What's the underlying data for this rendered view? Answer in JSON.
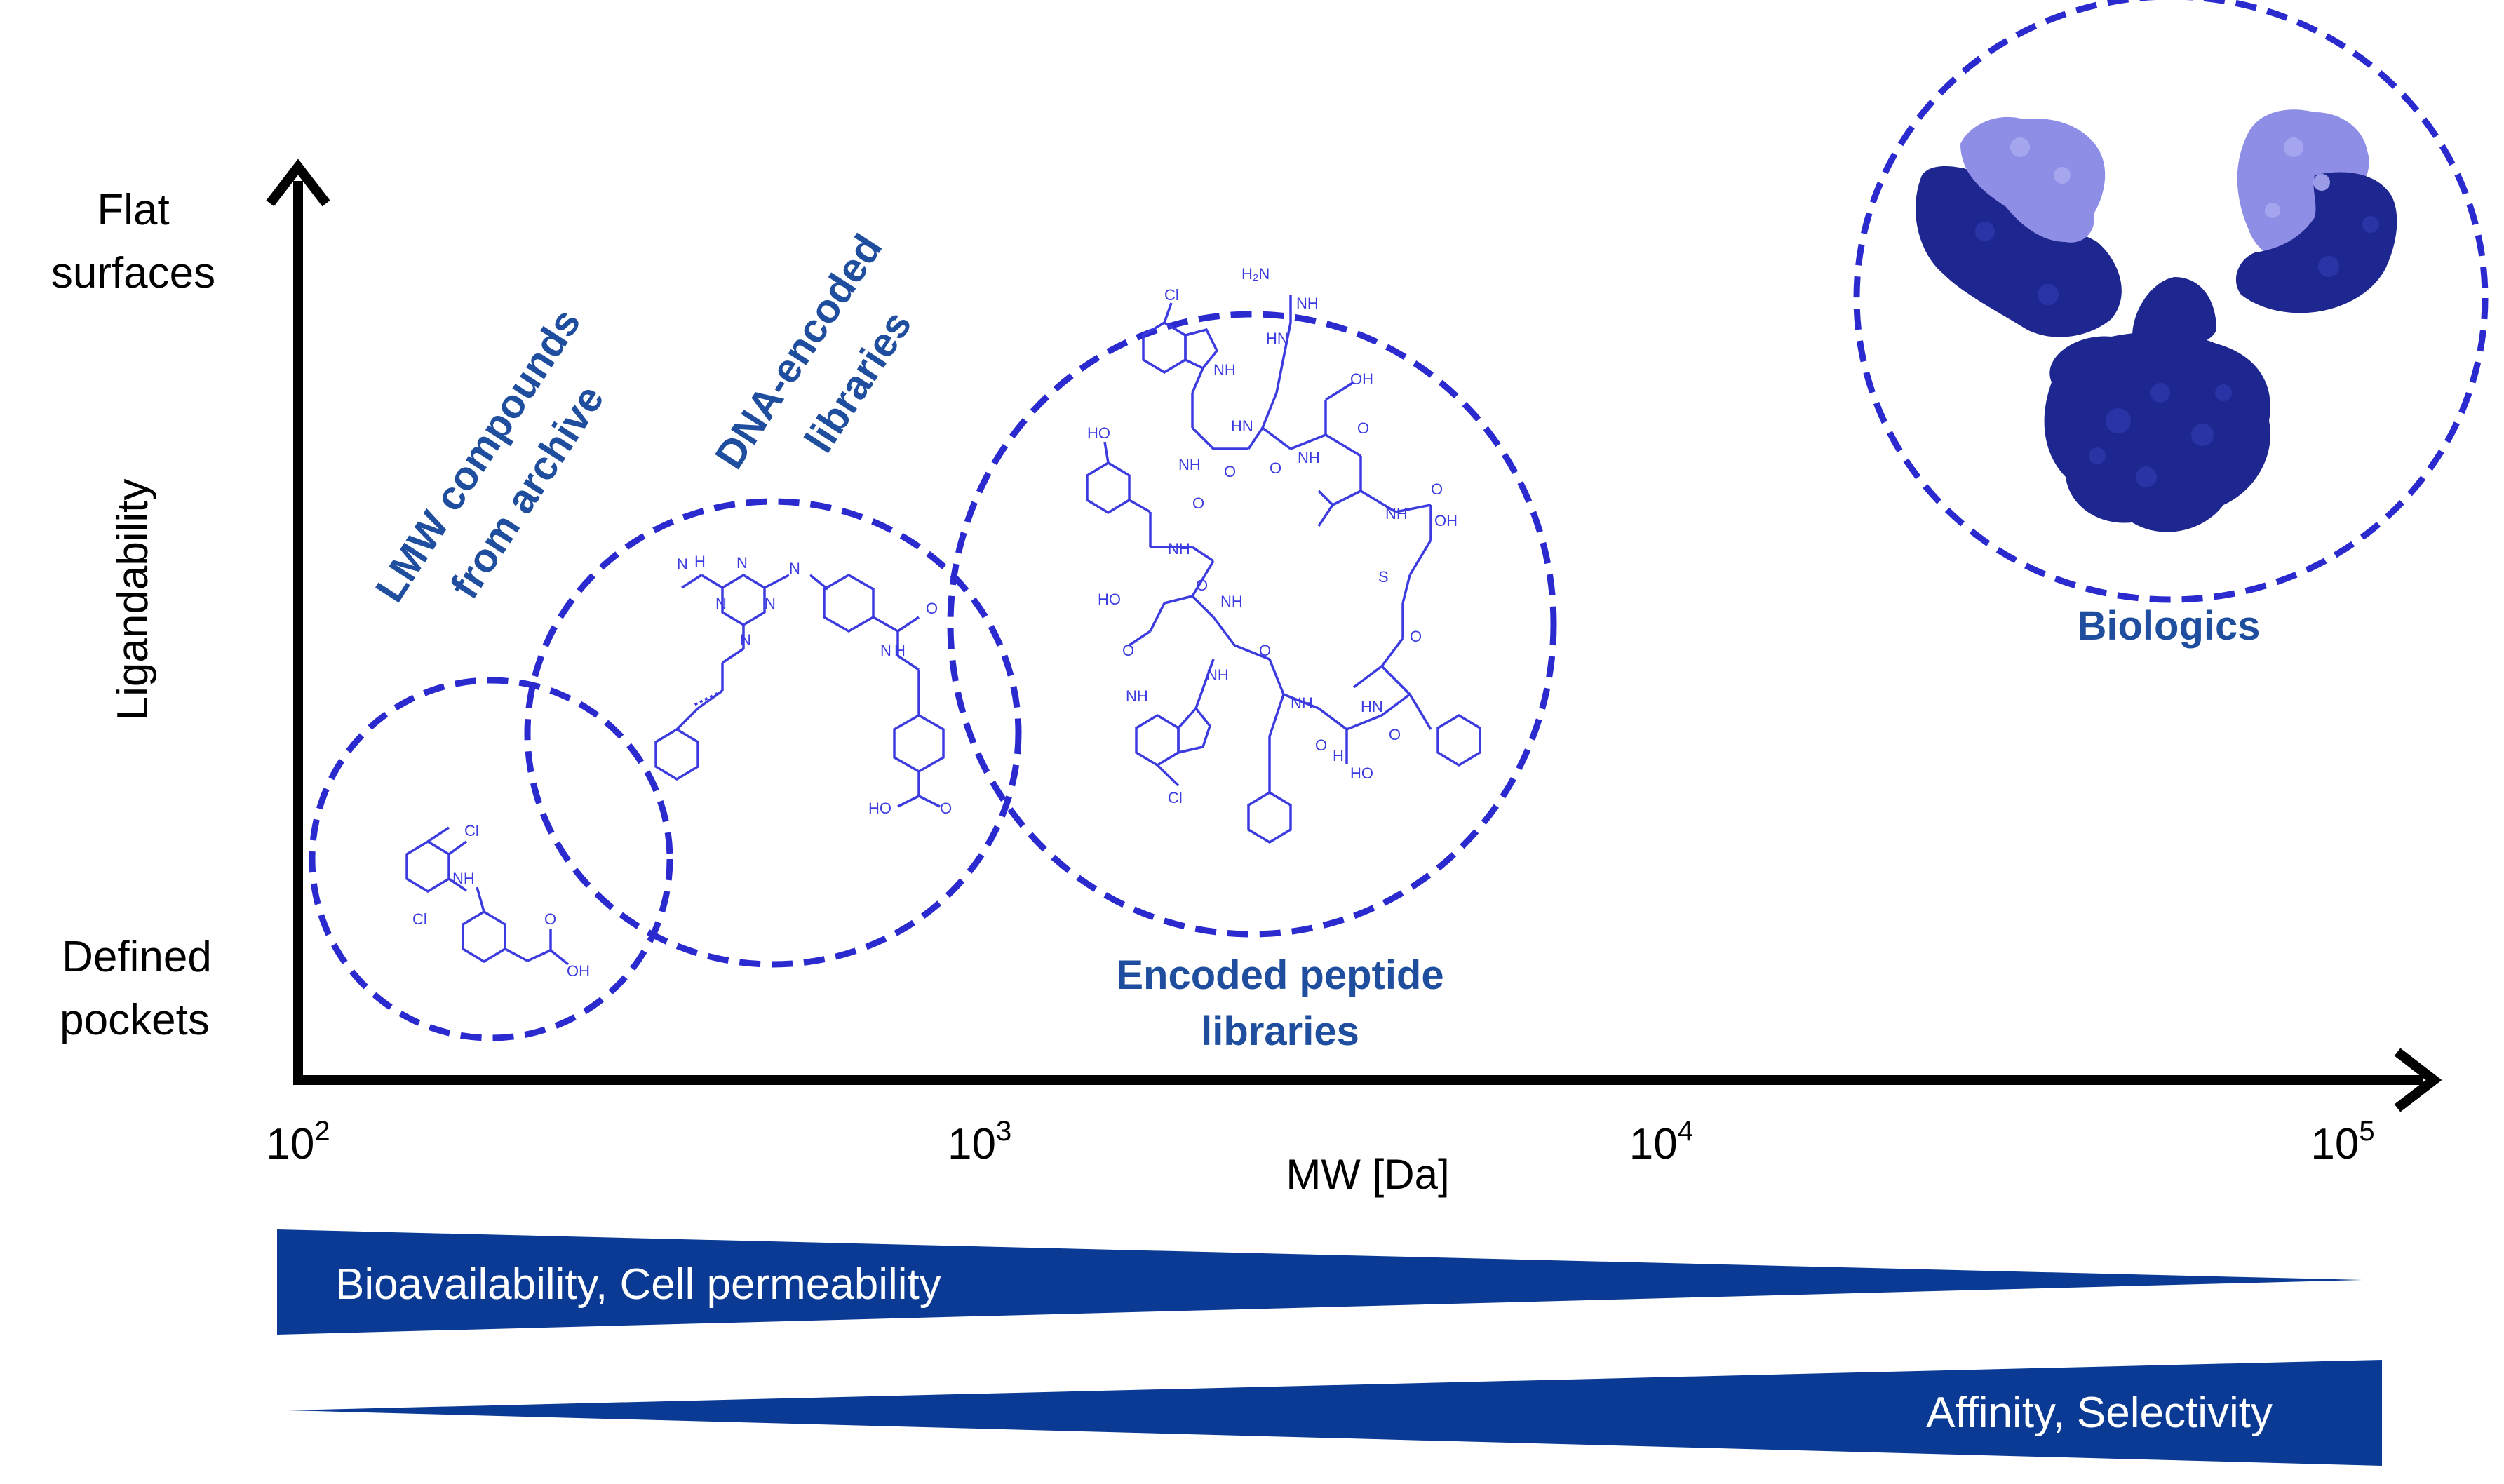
{
  "y_axis": {
    "title": "Ligandability",
    "top_label_line1": "Flat",
    "top_label_line2": "surfaces",
    "bottom_label_line1": "Defined",
    "bottom_label_line2": "pockets"
  },
  "x_axis": {
    "title": "MW [Da]",
    "scale": "log10",
    "ticks": [
      {
        "base": "10",
        "exp": "2",
        "value": 100
      },
      {
        "base": "10",
        "exp": "3",
        "value": 1000
      },
      {
        "base": "10",
        "exp": "4",
        "value": 10000
      },
      {
        "base": "10",
        "exp": "5",
        "value": 100000
      }
    ]
  },
  "categories": {
    "lmw": {
      "line1": "LMW compounds",
      "line2": "from archive"
    },
    "del": {
      "line1": "DNA-encoded",
      "line2": "libraries"
    },
    "peptide": {
      "line1": "Encoded peptide",
      "line2": "libraries"
    },
    "biologics": {
      "line1": "Biologics"
    }
  },
  "atom_labels": {
    "cl": "Cl",
    "nh": "NH",
    "oh": "OH",
    "o": "O",
    "n": "N",
    "h": "H",
    "s": "S",
    "h2n": "H₂N",
    "hn": "HN",
    "ho": "HO"
  },
  "trends": {
    "decreasing": "Bioavailability, Cell permeability",
    "increasing": "Affinity, Selectivity"
  },
  "colors": {
    "axis": "#000000",
    "category_text": "#1F4E9E",
    "circle": "#2A2ACF",
    "molecule": "#3B3BE0",
    "antibody_dark": "#1E2690",
    "antibody_light": "#8E8EE6",
    "wedge": "#0A3A93"
  }
}
